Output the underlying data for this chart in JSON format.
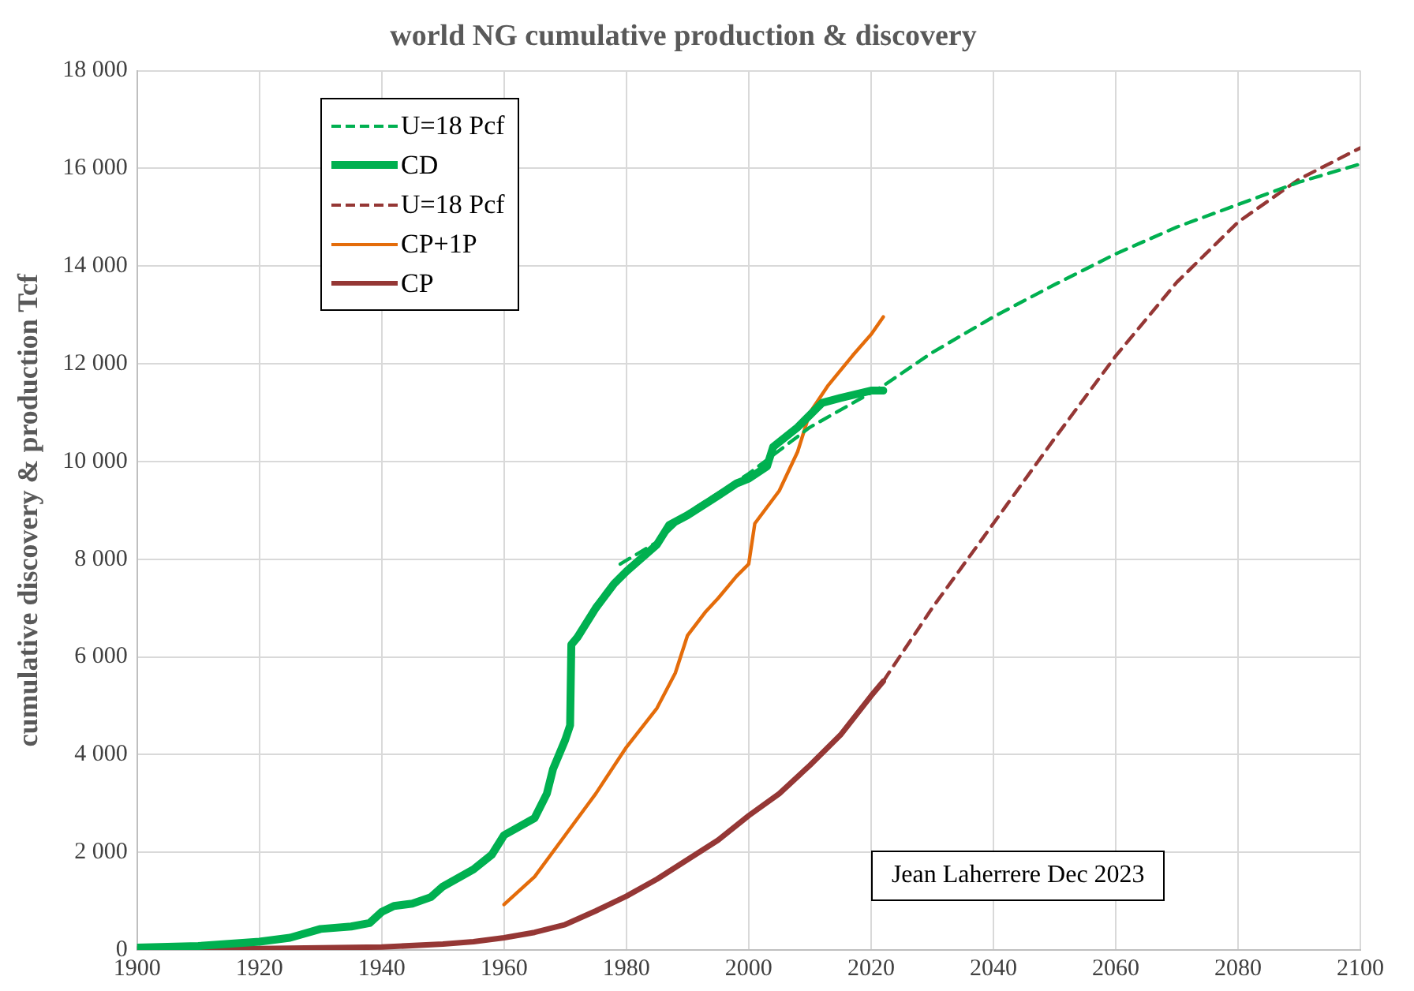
{
  "chart_data": {
    "type": "line",
    "title": "world NG cumulative production & discovery",
    "ylabel": "cumulative discovery & production Tcf",
    "xlim": [
      1900,
      2100
    ],
    "xticks": [
      1900,
      1920,
      1940,
      1960,
      1980,
      2000,
      2020,
      2040,
      2060,
      2080,
      2100
    ],
    "ylim": [
      0,
      18000
    ],
    "yticks": [
      0,
      {
        "value": 2000,
        "label": "2 000"
      },
      {
        "value": 4000,
        "label": "4 000"
      },
      {
        "value": 6000,
        "label": "6 000"
      },
      {
        "value": 8000,
        "label": "8 000"
      },
      {
        "value": 10000,
        "label": "10 000"
      },
      {
        "value": 12000,
        "label": "12 000"
      },
      {
        "value": 14000,
        "label": "14 000"
      },
      {
        "value": 16000,
        "label": "16 000"
      },
      {
        "value": 18000,
        "label": "18 000"
      }
    ],
    "grid": true,
    "legend": "top left",
    "marker": "none",
    "series": [
      {
        "name": "U=18 Pcf",
        "color": "#00b050",
        "line_style": "dashed",
        "x": [
          1979,
          1985,
          1990,
          2000,
          2010,
          2022,
          2030,
          2040,
          2050,
          2060,
          2070,
          2080,
          2090,
          2100
        ],
        "values": [
          7900,
          8350,
          8950,
          9750,
          10700,
          11550,
          12230,
          12960,
          13620,
          14250,
          14800,
          15260,
          15720,
          16090
        ]
      },
      {
        "name": "CD",
        "color": "#00b050",
        "line_style": "solid",
        "x": [
          1900,
          1910,
          1920,
          1925,
          1930,
          1935,
          1938,
          1940,
          1942,
          1945,
          1948,
          1950,
          1955,
          1958,
          1960,
          1965,
          1967,
          1968,
          1970,
          1970.8,
          1971,
          1972,
          1975,
          1978,
          1980,
          1985,
          1987,
          1990,
          1995,
          1998,
          2000,
          2003,
          2004,
          2008,
          2012,
          2015,
          2020,
          2022
        ],
        "values": [
          50,
          80,
          170,
          250,
          430,
          480,
          550,
          780,
          900,
          950,
          1080,
          1300,
          1650,
          1950,
          2350,
          2700,
          3200,
          3700,
          4300,
          4600,
          6250,
          6400,
          7000,
          7500,
          7750,
          8300,
          8700,
          8900,
          9300,
          9550,
          9650,
          9900,
          10300,
          10700,
          11200,
          11300,
          11450,
          11450
        ]
      },
      {
        "name": "U=18 Pcf",
        "color": "#953735",
        "line_style": "dashed",
        "x": [
          2022,
          2030,
          2040,
          2050,
          2060,
          2070,
          2080,
          2090,
          2100
        ],
        "values": [
          5500,
          7000,
          8730,
          10470,
          12160,
          13670,
          14900,
          15780,
          16420
        ]
      },
      {
        "name": "CP+1P",
        "color": "#e46c0a",
        "line_style": "solid",
        "x": [
          1960,
          1965,
          1970,
          1975,
          1980,
          1985,
          1988,
          1990,
          1993,
          1995,
          1998,
          2000,
          2001,
          2005,
          2008,
          2010,
          2013,
          2017,
          2020,
          2022
        ],
        "values": [
          930,
          1500,
          2350,
          3200,
          4150,
          4950,
          5670,
          6440,
          6930,
          7200,
          7650,
          7900,
          8730,
          9400,
          10200,
          11000,
          11560,
          12170,
          12600,
          12960
        ]
      },
      {
        "name": "CP",
        "color": "#953735",
        "line_style": "solid",
        "x": [
          1900,
          1920,
          1940,
          1950,
          1955,
          1960,
          1965,
          1970,
          1975,
          1980,
          1985,
          1990,
          1995,
          2000,
          2005,
          2010,
          2015,
          2020,
          2022
        ],
        "values": [
          20,
          30,
          60,
          120,
          170,
          250,
          360,
          520,
          800,
          1100,
          1450,
          1850,
          2250,
          2750,
          3200,
          3780,
          4400,
          5200,
          5500
        ]
      }
    ],
    "annotations": [
      "Jean Laherrere Dec 2023"
    ]
  }
}
